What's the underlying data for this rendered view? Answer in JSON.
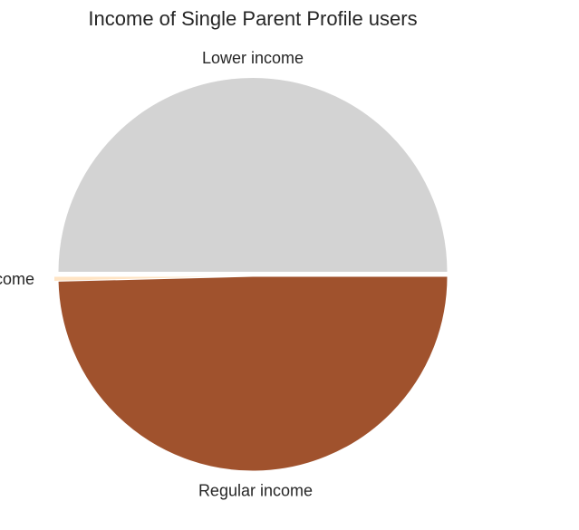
{
  "chart_data": {
    "type": "pie",
    "title": "Income of Single Parent Profile users",
    "slices": [
      {
        "label": "Lower income",
        "value": 50.0,
        "color": "#d3d3d3",
        "exploded": true
      },
      {
        "label": "High income",
        "value": 0.4,
        "color": "#ffe4c4",
        "exploded": true
      },
      {
        "label": "Regular income",
        "value": 49.6,
        "color": "#a0522d",
        "exploded": false
      }
    ],
    "start_angle_deg": 0,
    "direction": "counterclockwise"
  }
}
